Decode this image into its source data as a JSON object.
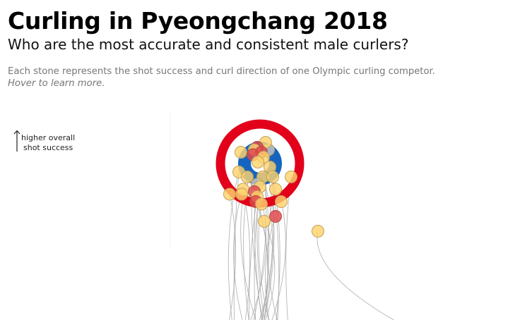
{
  "header": {
    "title": "Curling in Pyeongchang 2018",
    "subtitle": "Who are the most accurate and consistent male curlers?",
    "description": "Each stone represents the shot success and curl direction of one Olympic curling competor.",
    "hint": "Hover to learn more."
  },
  "axis": {
    "y_label_line1": "higher overall",
    "y_label_line2": "shot success"
  },
  "colors": {
    "house_outer": "#e2001a",
    "house_inner": "#1565c0",
    "stone_yellow": "#ffd36e",
    "stone_red": "#e0474c",
    "stone_grey": "#c8c8c8",
    "stone_stroke": "#bfa15a",
    "path": "#a9a9a9"
  },
  "chart_data": {
    "type": "scatter",
    "title": "Curling in Pyeongchang 2018",
    "subtitle": "Who are the most accurate and consistent male curlers?",
    "ylabel": "higher overall shot success",
    "xlabel": "",
    "legend": "none",
    "grid": false,
    "series": [
      {
        "values": [
          {
            "x": -27,
            "y": 88,
            "color": "yellow"
          },
          {
            "x": 12,
            "y": 89,
            "color": "grey"
          },
          {
            "x": 8,
            "y": 92,
            "color": "yellow"
          },
          {
            "x": -4,
            "y": 90,
            "color": "red"
          },
          {
            "x": -8,
            "y": 89,
            "color": "yellow"
          },
          {
            "x": 2,
            "y": 88,
            "color": "red"
          },
          {
            "x": -10,
            "y": 87,
            "color": "red"
          },
          {
            "x": 5,
            "y": 86,
            "color": "yellow"
          },
          {
            "x": -3,
            "y": 84,
            "color": "yellow"
          },
          {
            "x": 14,
            "y": 82,
            "color": "yellow"
          },
          {
            "x": -30,
            "y": 80,
            "color": "yellow"
          },
          {
            "x": 4,
            "y": 78,
            "color": "yellow"
          },
          {
            "x": 44,
            "y": 78,
            "color": "yellow"
          },
          {
            "x": 18,
            "y": 78,
            "color": "yellow"
          },
          {
            "x": -18,
            "y": 78,
            "color": "yellow"
          },
          {
            "x": -4,
            "y": 75,
            "color": "grey"
          },
          {
            "x": 0,
            "y": 74,
            "color": "yellow"
          },
          {
            "x": -24,
            "y": 73,
            "color": "yellow"
          },
          {
            "x": 22,
            "y": 73,
            "color": "yellow"
          },
          {
            "x": -8,
            "y": 72,
            "color": "red"
          },
          {
            "x": -4,
            "y": 70,
            "color": "yellow"
          },
          {
            "x": -43,
            "y": 71,
            "color": "yellow"
          },
          {
            "x": -26,
            "y": 71,
            "color": "yellow"
          },
          {
            "x": -6,
            "y": 68,
            "color": "red"
          },
          {
            "x": 2,
            "y": 67,
            "color": "yellow"
          },
          {
            "x": 30,
            "y": 68,
            "color": "yellow"
          },
          {
            "x": 22,
            "y": 62,
            "color": "red"
          },
          {
            "x": 6,
            "y": 60,
            "color": "yellow"
          },
          {
            "x": 82,
            "y": 56,
            "color": "yellow"
          }
        ]
      }
    ]
  }
}
